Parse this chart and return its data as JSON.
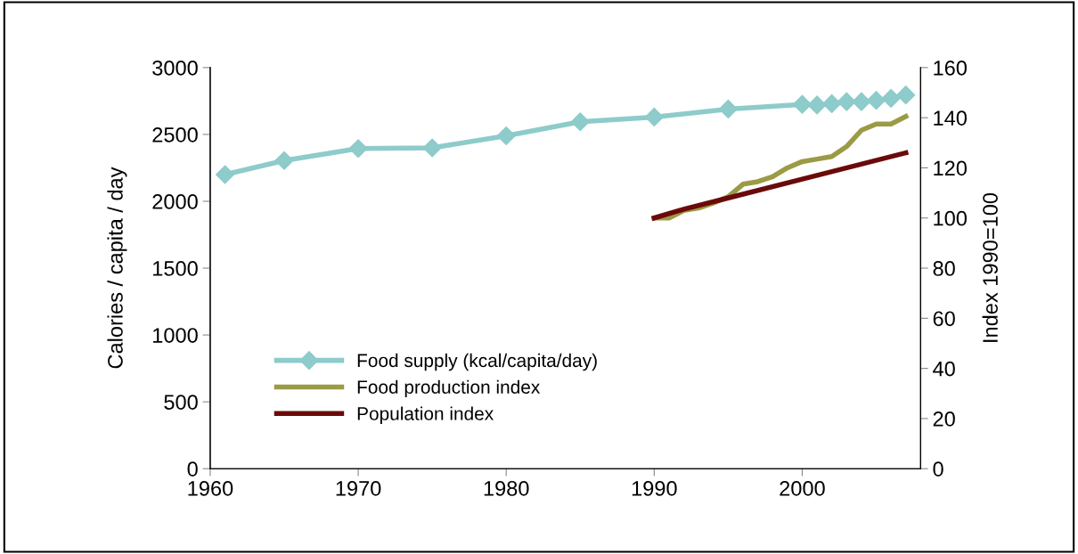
{
  "chart_data": {
    "type": "line",
    "ylabel": "Calories / capita / day",
    "y2label": "Index 1990=100",
    "xlim": [
      1960,
      2008
    ],
    "xticks": [
      1960,
      1970,
      1980,
      1990,
      2000
    ],
    "ylim": [
      0,
      3000
    ],
    "yticks": [
      0,
      500,
      1000,
      1500,
      2000,
      2500,
      3000
    ],
    "y2lim": [
      0,
      160
    ],
    "y2ticks": [
      0,
      20,
      40,
      60,
      80,
      100,
      120,
      140,
      160
    ],
    "grid": false,
    "legend": "bottom left",
    "series": [
      {
        "name": "Food supply (kcal/capita/day)",
        "color": "#8ecbcb",
        "marker": "diamond",
        "x": [
          1961,
          1965,
          1970,
          1975,
          1980,
          1985,
          1990,
          1995,
          2000,
          2001,
          2002,
          2003,
          2004,
          2005,
          2006,
          2007
        ],
        "values": [
          2200,
          2305,
          2395,
          2400,
          2490,
          2595,
          2630,
          2690,
          2725,
          2720,
          2730,
          2745,
          2745,
          2755,
          2770,
          2795
        ]
      },
      {
        "name": "Food production index",
        "color": "#9b9b47",
        "axis": "y2",
        "x": [
          1990,
          1991,
          1992,
          1993,
          1994,
          1995,
          1996,
          1997,
          1998,
          1999,
          2000,
          2001,
          2002,
          2003,
          2004,
          2005,
          2006,
          2007
        ],
        "values": [
          100,
          100,
          103,
          104,
          106,
          108.5,
          113.5,
          114.5,
          116.5,
          120,
          122.5,
          123.5,
          124.5,
          128.5,
          135,
          137.5,
          137.5,
          140.5
        ]
      },
      {
        "name": "Population index",
        "color": "#6b0a0a",
        "axis": "y2",
        "x": [
          1990,
          1992,
          1995,
          2000,
          2007
        ],
        "values": [
          100,
          103.5,
          108,
          115.5,
          126
        ]
      }
    ]
  }
}
